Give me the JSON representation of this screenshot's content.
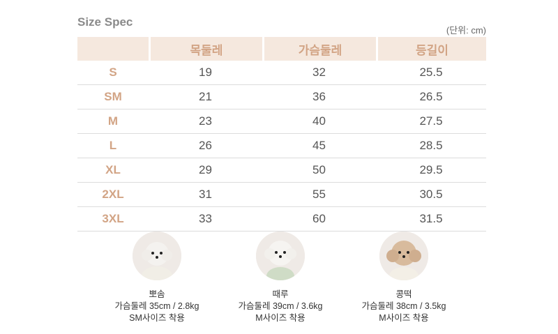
{
  "header": {
    "title": "Size Spec",
    "unit": "(단위: cm)"
  },
  "table": {
    "columns": [
      "",
      "목둘레",
      "가슴둘레",
      "등길이"
    ],
    "rows": [
      {
        "size": "S",
        "neck": "19",
        "chest": "32",
        "back": "25.5"
      },
      {
        "size": "SM",
        "neck": "21",
        "chest": "36",
        "back": "26.5"
      },
      {
        "size": "M",
        "neck": "23",
        "chest": "40",
        "back": "27.5"
      },
      {
        "size": "L",
        "neck": "26",
        "chest": "45",
        "back": "28.5"
      },
      {
        "size": "XL",
        "neck": "29",
        "chest": "50",
        "back": "29.5"
      },
      {
        "size": "2XL",
        "neck": "31",
        "chest": "55",
        "back": "30.5"
      },
      {
        "size": "3XL",
        "neck": "33",
        "chest": "60",
        "back": "31.5"
      }
    ]
  },
  "dogs": [
    {
      "name": "뽀솜",
      "measure": "가슴둘레 35cm / 2.8kg",
      "fit": "SM사이즈 착용",
      "coat_color": "#f4f2ef",
      "cloth_color": "#f1eee6"
    },
    {
      "name": "때루",
      "measure": "가슴둘레 39cm / 3.6kg",
      "fit": "M사이즈 착용",
      "coat_color": "#f6f4f1",
      "cloth_color": "#cfdcc6"
    },
    {
      "name": "콩떡",
      "measure": "가슴둘레 38cm / 3.5kg",
      "fit": "M사이즈 착용",
      "coat_color": "#d8bb9d",
      "cloth_color": "#f3efe6"
    }
  ],
  "colors": {
    "accent": "#d2a485",
    "header_bg": "#f5e8de",
    "divider": "#dcdcdc"
  }
}
